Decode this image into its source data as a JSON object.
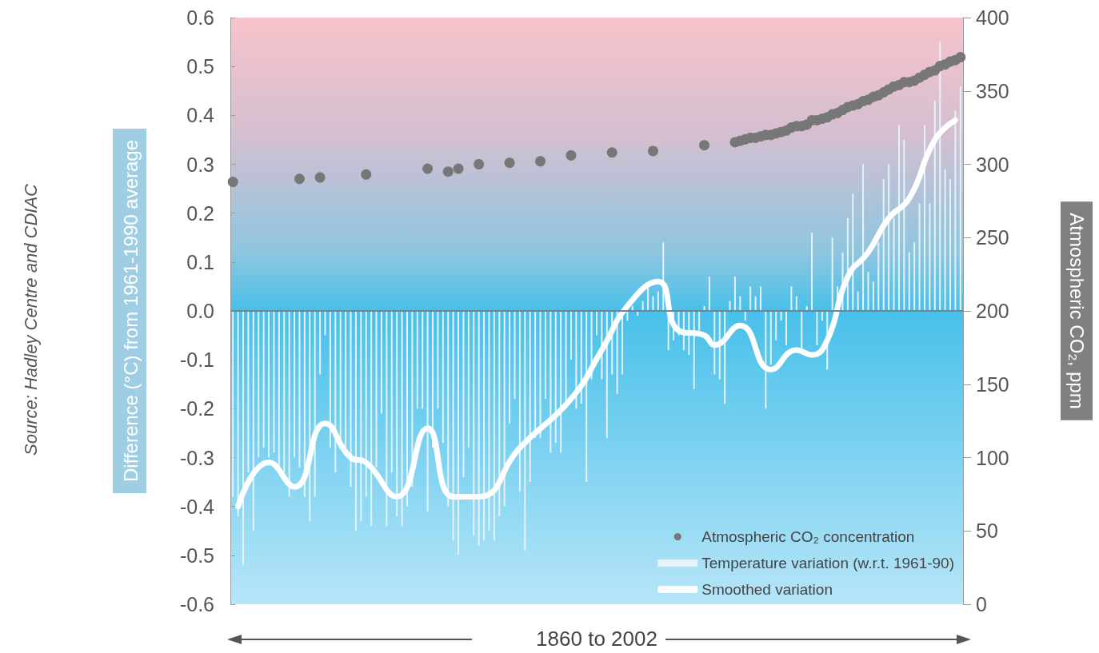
{
  "chart_data": {
    "type": "bar",
    "xlabel": "1860 to 2002",
    "ylabel": "Difference (°C) from 1961-1990 average",
    "y2label": "Atmospheric CO₂, ppm",
    "annotations": [
      "Source: Hadley Centre and CDIAC"
    ],
    "categories": [
      null,
      null,
      null,
      null,
      null,
      null,
      null,
      null,
      null,
      null,
      null,
      null,
      null,
      null,
      null,
      null,
      null,
      null,
      null,
      null,
      null,
      null,
      null,
      null,
      null,
      null,
      null,
      null,
      null,
      null,
      null,
      null,
      null,
      null,
      null,
      null,
      null,
      null,
      null,
      null,
      null,
      null,
      null,
      null,
      null,
      null,
      null,
      null,
      null,
      null,
      null,
      null,
      null,
      null,
      null,
      null,
      null,
      null,
      null,
      null,
      null,
      null,
      null,
      null,
      null,
      null,
      null,
      null,
      null,
      null,
      null,
      null,
      null,
      null,
      null,
      null,
      null,
      null,
      null,
      null,
      null,
      null,
      null,
      null,
      null,
      null,
      null,
      null,
      null,
      null,
      null,
      null,
      null,
      null,
      null,
      null,
      null,
      null,
      null,
      null,
      null,
      null,
      null,
      null,
      null,
      null,
      null,
      null,
      null,
      null,
      null,
      null,
      null,
      null,
      null,
      null,
      null,
      null,
      null,
      null,
      null,
      null,
      null,
      null,
      null,
      null,
      null,
      null,
      null,
      null,
      null,
      null,
      null,
      null,
      null,
      null,
      null,
      null,
      null,
      null,
      null,
      null,
      null
    ],
    "series": [
      {
        "name": "Atmospheric CO₂ concentration",
        "type": "scatter",
        "axis": "y2",
        "color": "#777777",
        "values": [
          288,
          null,
          null,
          null,
          null,
          null,
          null,
          null,
          null,
          null,
          null,
          null,
          null,
          290,
          null,
          null,
          null,
          291,
          null,
          null,
          null,
          null,
          null,
          null,
          null,
          null,
          293,
          null,
          null,
          null,
          null,
          null,
          null,
          null,
          null,
          null,
          null,
          null,
          297,
          null,
          null,
          null,
          295,
          null,
          297,
          null,
          null,
          null,
          300,
          null,
          null,
          null,
          null,
          null,
          301,
          null,
          null,
          null,
          null,
          null,
          302,
          null,
          null,
          null,
          null,
          null,
          306,
          null,
          null,
          null,
          null,
          null,
          null,
          null,
          308,
          null,
          null,
          null,
          null,
          null,
          null,
          null,
          309,
          null,
          null,
          null,
          null,
          null,
          null,
          null,
          null,
          null,
          313,
          null,
          null,
          null,
          null,
          null,
          315,
          316,
          317,
          318,
          318,
          319,
          320,
          320,
          321,
          322,
          323,
          325,
          326,
          326,
          327,
          330,
          330,
          331,
          332,
          334,
          335,
          337,
          339,
          340,
          341,
          343,
          344,
          346,
          347,
          349,
          351,
          353,
          354,
          356,
          356,
          357,
          359,
          361,
          363,
          364,
          367,
          368,
          370,
          371,
          373
        ]
      },
      {
        "name": "Temperature variation (w.r.t. 1961-90)",
        "color": "#e4f3fa",
        "values": [
          -0.38,
          -0.42,
          -0.52,
          -0.33,
          -0.45,
          -0.3,
          -0.28,
          -0.3,
          -0.29,
          -0.32,
          -0.33,
          -0.38,
          -0.3,
          -0.32,
          -0.38,
          -0.43,
          -0.38,
          -0.13,
          -0.05,
          -0.28,
          -0.33,
          -0.27,
          -0.28,
          -0.36,
          -0.45,
          -0.43,
          -0.38,
          -0.44,
          -0.32,
          -0.21,
          -0.44,
          -0.33,
          -0.42,
          -0.44,
          -0.4,
          -0.36,
          -0.2,
          -0.2,
          -0.41,
          -0.28,
          -0.2,
          -0.27,
          -0.4,
          -0.47,
          -0.5,
          -0.34,
          -0.28,
          -0.46,
          -0.48,
          -0.47,
          -0.45,
          -0.47,
          -0.42,
          -0.4,
          -0.23,
          -0.18,
          -0.37,
          -0.49,
          -0.35,
          -0.26,
          -0.26,
          -0.18,
          -0.29,
          -0.27,
          -0.29,
          -0.2,
          -0.1,
          -0.2,
          -0.19,
          -0.35,
          -0.14,
          -0.05,
          -0.14,
          -0.26,
          -0.13,
          -0.17,
          -0.13,
          -0.02,
          0.01,
          -0.01,
          0.02,
          0.06,
          0.03,
          0.04,
          0.14,
          -0.08,
          -0.06,
          -0.05,
          -0.08,
          -0.09,
          -0.16,
          -0.04,
          0.01,
          0.07,
          -0.13,
          -0.14,
          -0.19,
          0.02,
          0.07,
          0.03,
          -0.02,
          0.05,
          0.03,
          0.05,
          -0.2,
          -0.11,
          -0.06,
          -0.02,
          -0.07,
          0.05,
          0.03,
          -0.08,
          0.01,
          0.16,
          -0.07,
          -0.02,
          -0.12,
          0.15,
          0.05,
          0.12,
          0.19,
          0.24,
          0.04,
          0.3,
          0.08,
          0.06,
          0.14,
          0.27,
          0.3,
          0.19,
          0.38,
          0.35,
          0.12,
          0.14,
          0.22,
          0.38,
          0.22,
          0.43,
          0.55,
          0.29,
          0.27,
          0.41,
          0.46
        ]
      },
      {
        "name": "Smoothed variation",
        "type": "line",
        "color": "#ffffff",
        "values": [
          null,
          -0.4,
          null,
          null,
          null,
          null,
          null,
          -0.31,
          null,
          null,
          null,
          null,
          -0.36,
          null,
          null,
          null,
          null,
          null,
          -0.23,
          null,
          null,
          null,
          null,
          -0.3,
          null,
          null,
          -0.31,
          null,
          null,
          null,
          null,
          null,
          -0.38,
          null,
          null,
          null,
          null,
          null,
          -0.24,
          null,
          null,
          null,
          null,
          -0.38,
          null,
          null,
          null,
          null,
          -0.38,
          null,
          null,
          null,
          null,
          null,
          null,
          null,
          -0.28,
          null,
          null,
          null,
          null,
          null,
          null,
          null,
          null,
          null,
          -0.18,
          null,
          null,
          null,
          null,
          null,
          -0.08,
          null,
          null,
          null,
          null,
          0.01,
          null,
          null,
          null,
          null,
          null,
          0.06,
          null,
          null,
          null,
          -0.04,
          null,
          null,
          null,
          null,
          -0.05,
          null,
          -0.07,
          null,
          null,
          null,
          null,
          -0.03,
          null,
          null,
          null,
          null,
          null,
          -0.12,
          null,
          null,
          null,
          null,
          -0.08,
          null,
          null,
          -0.09,
          null,
          null,
          -0.06,
          null,
          null,
          null,
          0.07,
          null,
          null,
          null,
          0.12,
          null,
          null,
          null,
          0.19,
          null,
          null,
          null,
          0.23,
          null,
          null,
          null,
          null,
          0.35,
          null,
          null,
          null,
          0.39,
          null
        ]
      }
    ],
    "ylim": [
      -0.6,
      0.6
    ],
    "yticks": [
      {
        "value": -0.6,
        "label": "-0.6"
      },
      {
        "value": -0.5,
        "label": "-0.5"
      },
      {
        "value": -0.4,
        "label": "-0.4"
      },
      {
        "value": -0.3,
        "label": "-0.3"
      },
      {
        "value": -0.2,
        "label": "-0.2"
      },
      {
        "value": -0.1,
        "label": "-0.1"
      },
      {
        "value": 0,
        "label": "0.0"
      },
      {
        "value": 0.1,
        "label": "0.1"
      },
      {
        "value": 0.2,
        "label": "0.2"
      },
      {
        "value": 0.3,
        "label": "0.3"
      },
      {
        "value": 0.4,
        "label": "0.4"
      },
      {
        "value": 0.5,
        "label": "0.5"
      },
      {
        "value": 0.6,
        "label": "0.6"
      }
    ],
    "y2lim": [
      0,
      400
    ],
    "y2ticks": [
      0,
      50,
      100,
      150,
      200,
      250,
      300,
      350,
      400
    ],
    "ref_lines": [
      {
        "axis": "y",
        "value": 0,
        "color": "#6f8596"
      }
    ],
    "legend": "bottom right"
  }
}
